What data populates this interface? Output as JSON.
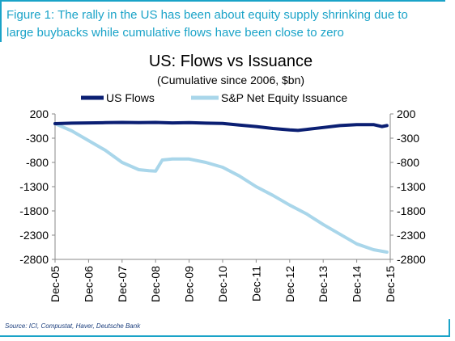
{
  "figure": {
    "title_line1": "Figure 1: The rally in the US has been about equity supply shrinking due to",
    "title_line2": "large buybacks while cumulative flows have been close to zero",
    "source": "Source: ICI, Compustat, Haver, Deutsche Bank"
  },
  "colors": {
    "accent": "#1aa3c8",
    "us_flows": "#0b1f73",
    "net_issuance": "#a9d6ea"
  },
  "chart_data": {
    "type": "line",
    "title": "US: Flows vs Issuance",
    "subtitle": "(Cumulative since 2006, $bn)",
    "ylim": [
      -2800,
      200
    ],
    "y_ticks": [
      200,
      -300,
      -800,
      -1300,
      -1800,
      -2300,
      -2800
    ],
    "x_tick_labels": [
      "Dec-05",
      "Dec-06",
      "Dec-07",
      "Dec-08",
      "Dec-09",
      "Dec-10",
      "Dec-11",
      "Dec-12",
      "Dec-13",
      "Dec-14",
      "Dec-15"
    ],
    "legend_position": "top",
    "grid": false,
    "series": [
      {
        "name": "US Flows",
        "x": [
          0,
          0.5,
          1,
          1.5,
          2,
          2.5,
          3,
          3.5,
          4,
          4.5,
          5,
          5.5,
          6,
          6.5,
          7,
          7.25,
          7.5,
          8,
          8.5,
          9,
          9.5,
          9.75,
          9.9
        ],
        "y": [
          0,
          10,
          15,
          20,
          25,
          20,
          25,
          15,
          20,
          10,
          5,
          -30,
          -60,
          -100,
          -130,
          -140,
          -120,
          -80,
          -40,
          -20,
          -20,
          -60,
          -40
        ]
      },
      {
        "name": "S&P Net Equity Issuance",
        "x": [
          0,
          0.5,
          1,
          1.5,
          2,
          2.5,
          2.8,
          3,
          3.2,
          3.5,
          4,
          4.5,
          5,
          5.5,
          6,
          6.5,
          7,
          7.5,
          8,
          8.5,
          9,
          9.5,
          9.9
        ],
        "y": [
          0,
          -150,
          -350,
          -550,
          -800,
          -950,
          -970,
          -980,
          -750,
          -730,
          -730,
          -800,
          -900,
          -1080,
          -1300,
          -1480,
          -1680,
          -1860,
          -2080,
          -2280,
          -2480,
          -2600,
          -2650
        ]
      }
    ]
  }
}
